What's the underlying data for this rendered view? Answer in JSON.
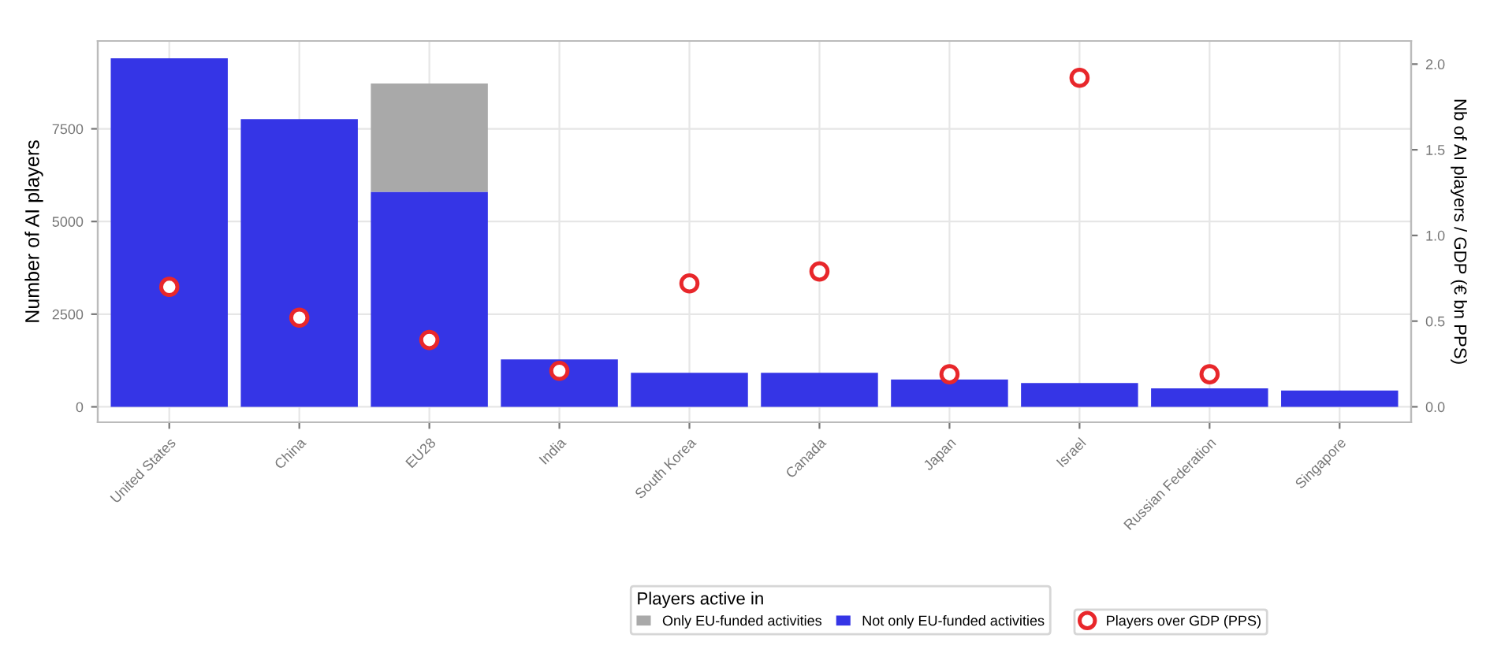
{
  "chart_data": {
    "type": "bar",
    "stacked": true,
    "xlabel": null,
    "ylabel": "Number of AI players",
    "y2label": "Nb of AI players / GDP (€ bn PPS)",
    "legend_title": "Players active in",
    "categories": [
      "United States",
      "China",
      "EU28",
      "India",
      "South Korea",
      "Canada",
      "Japan",
      "Israel",
      "Russian Federation",
      "Singapore"
    ],
    "series": [
      {
        "name": "Not only EU-funded activities",
        "color": "#3535e6",
        "values": [
          9400,
          7760,
          5800,
          1280,
          920,
          920,
          740,
          640,
          500,
          440
        ]
      },
      {
        "name": "Only EU-funded activities",
        "color": "#a9a9a9",
        "values": [
          null,
          null,
          2920,
          null,
          null,
          null,
          null,
          null,
          null,
          null
        ]
      },
      {
        "name": "Players over GDP (PPS)",
        "type": "scatter",
        "axis": "y2",
        "marker": "circle",
        "color": "#e8272b",
        "values": [
          0.7,
          0.52,
          0.39,
          0.21,
          0.72,
          0.79,
          0.19,
          1.92,
          0.19,
          null
        ]
      }
    ],
    "ylim": [
      -415,
      9870
    ],
    "yticks": [
      0,
      2500,
      5000,
      7500
    ],
    "y2lim": [
      -0.09,
      2.135
    ],
    "y2ticks": [
      {
        "value": 0,
        "label": "0.0"
      },
      0.5,
      {
        "value": 1,
        "label": "1.0"
      },
      1.5,
      {
        "value": 2,
        "label": "2.0"
      }
    ],
    "grid": true,
    "legend": "bottom"
  }
}
